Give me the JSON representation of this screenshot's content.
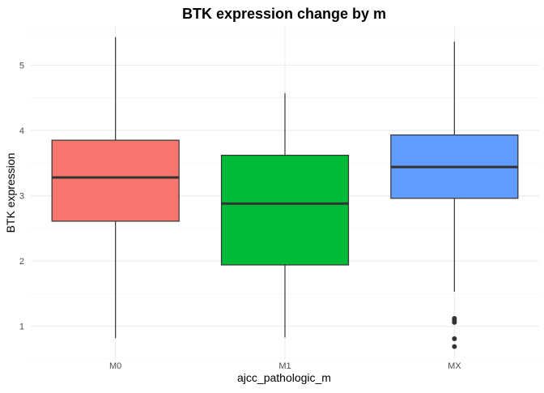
{
  "chart_data": {
    "type": "boxplot",
    "title": "BTK expression change by m",
    "xlabel": "ajcc_pathologic_m",
    "ylabel": "BTK expression",
    "ylim": [
      0.5,
      5.6
    ],
    "yticks": [
      1,
      2,
      3,
      4,
      5
    ],
    "grid": true,
    "legend": "none",
    "categories": [
      "M0",
      "M1",
      "MX"
    ],
    "boxes": [
      {
        "category": "M0",
        "color": "#F8766D",
        "whisker_low": 0.82,
        "q1": 2.61,
        "median": 3.28,
        "q3": 3.85,
        "whisker_high": 5.43,
        "outliers": []
      },
      {
        "category": "M1",
        "color": "#00BA38",
        "whisker_low": 0.83,
        "q1": 1.94,
        "median": 2.88,
        "q3": 3.62,
        "whisker_high": 4.57,
        "outliers": []
      },
      {
        "category": "MX",
        "color": "#619CFF",
        "whisker_low": 1.53,
        "q1": 2.96,
        "median": 3.44,
        "q3": 3.93,
        "whisker_high": 5.36,
        "outliers": [
          1.12,
          1.09,
          1.06,
          0.81,
          0.69
        ]
      }
    ]
  }
}
